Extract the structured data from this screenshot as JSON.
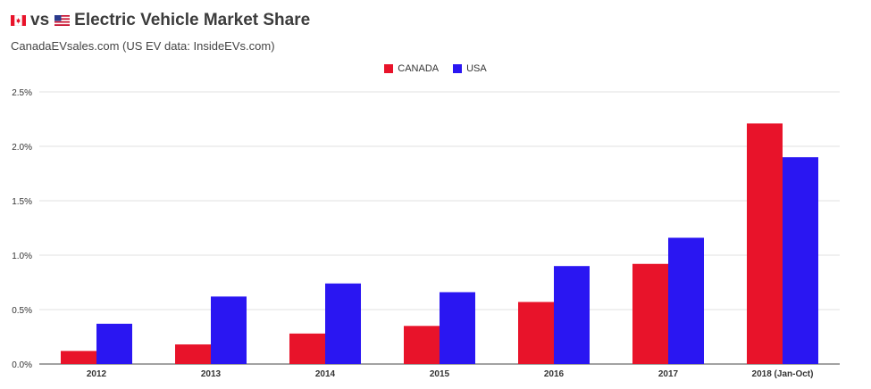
{
  "header": {
    "title_vs": "vs",
    "title_text": "Electric Vehicle Market Share",
    "subtitle": "CanadaEVsales.com   (US EV data: InsideEVs.com)"
  },
  "colors": {
    "canada": "#e8132a",
    "usa": "#2a16f2",
    "grid": "#e2e2e2",
    "axis_text": "#333333"
  },
  "chart_data": {
    "type": "bar",
    "categories": [
      "2012",
      "2013",
      "2014",
      "2015",
      "2016",
      "2017",
      "2018 (Jan-Oct)"
    ],
    "series": [
      {
        "name": "CANADA",
        "values": [
          0.12,
          0.18,
          0.28,
          0.35,
          0.57,
          0.92,
          2.21
        ]
      },
      {
        "name": "USA",
        "values": [
          0.37,
          0.62,
          0.74,
          0.66,
          0.9,
          1.16,
          1.9
        ]
      }
    ],
    "yticks": [
      "0.0%",
      "0.5%",
      "1.0%",
      "1.5%",
      "2.0%",
      "2.5%"
    ],
    "ylim": [
      0,
      2.5
    ],
    "grid": true,
    "legend": "top-center"
  }
}
